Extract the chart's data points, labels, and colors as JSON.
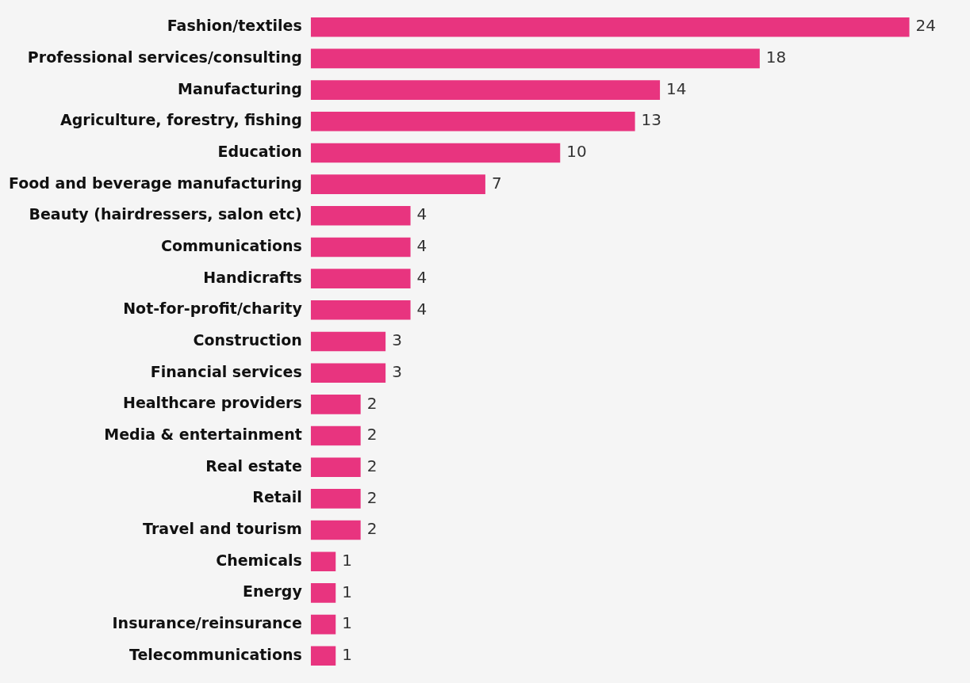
{
  "chart_data": {
    "type": "bar",
    "orientation": "horizontal",
    "categories": [
      "Fashion/textiles",
      "Professional services/consulting",
      "Manufacturing",
      "Agriculture, forestry, fishing",
      "Education",
      "Food and beverage manufacturing",
      "Beauty (hairdressers, salon etc)",
      "Communications",
      "Handicrafts",
      "Not-for-profit/charity",
      "Construction",
      "Financial services",
      "Healthcare providers",
      "Media & entertainment",
      "Real estate",
      "Retail",
      "Travel and tourism",
      "Chemicals",
      "Energy",
      "Insurance/reinsurance",
      "Telecommunications"
    ],
    "values": [
      24,
      18,
      14,
      13,
      10,
      7,
      4,
      4,
      4,
      4,
      3,
      3,
      2,
      2,
      2,
      2,
      2,
      1,
      1,
      1,
      1
    ],
    "color": "#e8347f",
    "data_labels": true,
    "tick_labels": "y"
  }
}
